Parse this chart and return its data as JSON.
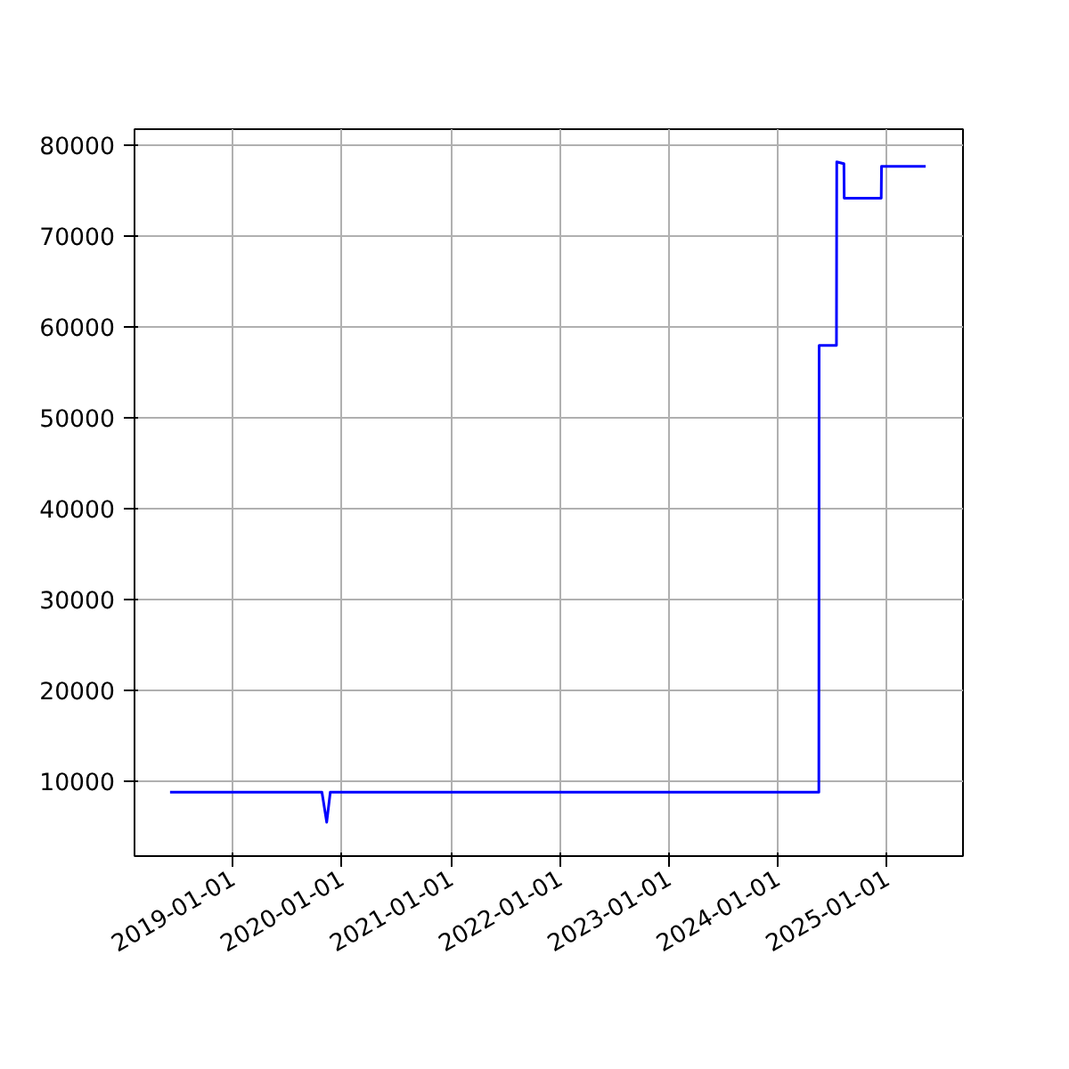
{
  "chart_data": {
    "type": "line",
    "x": [
      "2018-06-05",
      "2019-10-27",
      "2019-11-12",
      "2019-11-24",
      "2024-05-18",
      "2024-05-19",
      "2024-07-16",
      "2024-07-17",
      "2024-08-10",
      "2024-08-11",
      "2024-12-13",
      "2024-12-14",
      "2025-05-11"
    ],
    "series": [
      {
        "color": "#0000ff",
        "values": [
          8800,
          8800,
          5500,
          8800,
          8800,
          58000,
          58000,
          78200,
          78000,
          74200,
          74200,
          77700,
          77700
        ]
      }
    ],
    "xlim": [
      "2018-02-06",
      "2025-09-13"
    ],
    "xticks": [
      "2019-01-01",
      "2020-01-01",
      "2021-01-01",
      "2022-01-01",
      "2023-01-01",
      "2024-01-01",
      "2025-01-01"
    ],
    "ylim": [
      1765,
      81800
    ],
    "yticks": [
      10000,
      20000,
      30000,
      40000,
      50000,
      60000,
      70000,
      80000
    ],
    "grid": true
  }
}
